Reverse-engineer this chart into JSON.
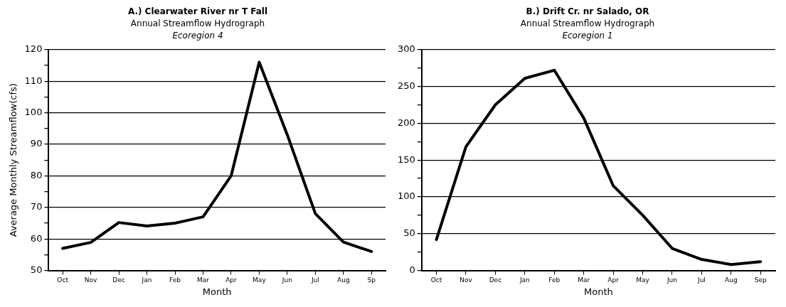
{
  "chart_data": [
    {
      "type": "line",
      "title": "A.) Clearwater River nr T Fall",
      "subtitle": "Annual Streamflow Hydrograph",
      "annotations": [
        "Ecoregion 4"
      ],
      "xlabel": "Month",
      "ylabel": "Average Monthly Streamflow(cfs)",
      "categories": [
        "Oct",
        "Nov",
        "Dec",
        "Jan",
        "Feb",
        "Mar",
        "Apr",
        "May",
        "Jun",
        "Jul",
        "Aug",
        "Sp"
      ],
      "series": [
        {
          "color": "#000000",
          "values": [
            57,
            58.9,
            65.2,
            64.1,
            65,
            67,
            80,
            116,
            93,
            68,
            59,
            56
          ]
        }
      ],
      "ylim": [
        50,
        120
      ],
      "yticks": [
        50,
        {
          "value": 55,
          "label": null
        },
        60,
        {
          "value": 65,
          "label": null
        },
        70,
        {
          "value": 75,
          "label": null
        },
        80,
        {
          "value": 85,
          "label": null
        },
        90,
        {
          "value": 95,
          "label": null
        },
        100,
        {
          "value": 105,
          "label": null
        },
        110,
        {
          "value": 115,
          "label": null
        },
        120
      ],
      "grid": "y",
      "marker": "none",
      "line_style": "solid"
    },
    {
      "type": "line",
      "title": "B.) Drift Cr. nr Salado, OR",
      "subtitle": "Annual Streamflow Hydrograph",
      "annotations": [
        "Ecoregion 1"
      ],
      "xlabel": "Month",
      "categories": [
        "Oct",
        "Nov",
        "Dec",
        "Jan",
        "Feb",
        "Mar",
        "Apr",
        "May",
        "Jun",
        "Jul",
        "Aug",
        "Sep"
      ],
      "series": [
        {
          "color": "#000000",
          "values": [
            42,
            168,
            225,
            261,
            272,
            207,
            115,
            75,
            30,
            15,
            8,
            12
          ]
        }
      ],
      "ylim": [
        0,
        300
      ],
      "yticks": [
        0,
        {
          "value": 25,
          "label": null
        },
        50,
        {
          "value": 75,
          "label": null
        },
        100,
        {
          "value": 125,
          "label": null
        },
        150,
        {
          "value": 175,
          "label": null
        },
        200,
        {
          "value": 225,
          "label": null
        },
        250,
        {
          "value": 275,
          "label": null
        },
        300
      ],
      "grid": "y",
      "marker": "none",
      "line_style": "solid"
    }
  ]
}
